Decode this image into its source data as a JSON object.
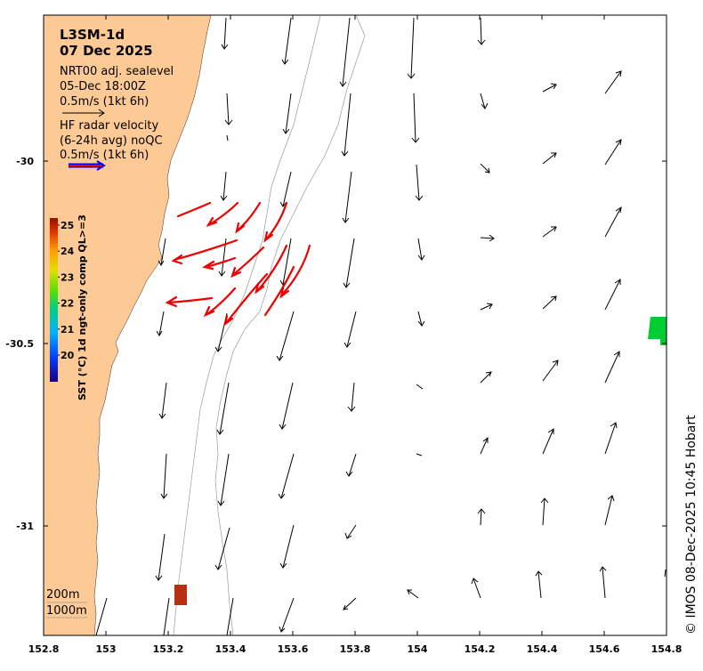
{
  "map": {
    "lon_range": [
      152.8,
      154.8
    ],
    "lat_range": [
      -31.3,
      -29.6
    ],
    "x_ticks": [
      "152.8",
      "153",
      "153.2",
      "153.4",
      "153.6",
      "153.8",
      "154",
      "154.2",
      "154.4",
      "154.6",
      "154.8"
    ],
    "y_ticks": [
      {
        "label": "-30",
        "lat": -30.0
      },
      {
        "label": "-30.5",
        "lat": -30.5
      },
      {
        "label": "-31",
        "lat": -31.0
      }
    ]
  },
  "legend": {
    "title_line1": "L3SM-1d",
    "title_line2": "07 Dec 2025",
    "sealevel_label": "NRT00 adj. sealevel",
    "sealevel_time": "05-Dec 18:00Z",
    "sealevel_scale": "0.5m/s (1kt 6h)",
    "hf_label_line1": "HF radar velocity",
    "hf_label_line2": "(6-24h avg) noQC",
    "hf_scale": "0.5m/s (1kt 6h)"
  },
  "colorbar": {
    "label": "SST (°C) 1d ngt-only comp QL>=3",
    "ticks": [
      "25",
      "24",
      "23",
      "22",
      "21",
      "20"
    ]
  },
  "isobaths": {
    "label_200": "200m",
    "label_1000": "1000m"
  },
  "credit": "© IMOS 08-Dec-2025 10:45 Hobart",
  "colors": {
    "land": "#fdca96",
    "hf_arrow": "#ee0000",
    "hf_arrow_outline": "#0000ee",
    "sealevel_arrow": "#000000",
    "isobath": "#999999",
    "sst_green": "#00cc33",
    "sst_brown": "#b83010"
  }
}
